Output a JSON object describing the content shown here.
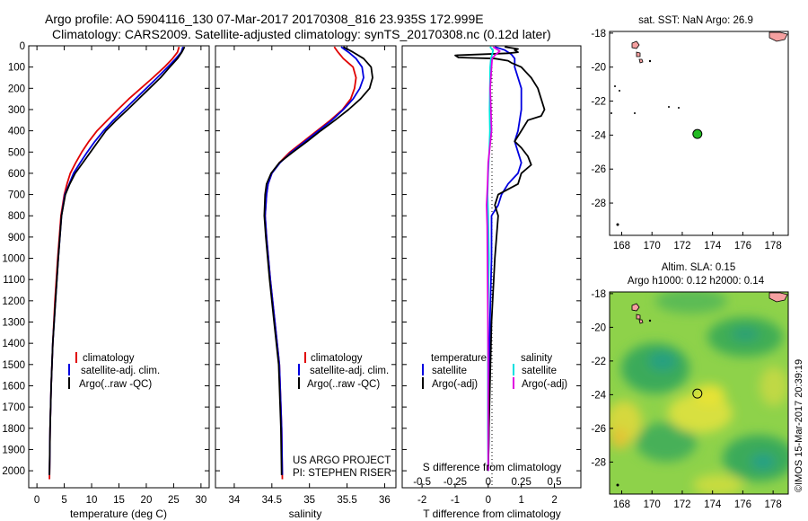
{
  "figure": {
    "title_line1": "Argo profile: AO 5904116_130 07-Mar-2017 20170308_816 23.935S 172.999E",
    "title_line2": "Climatology: CARS2009. Satellite-adjusted climatology: synTS_20170308.nc (0.12d later)",
    "timestamp": "©IMOS 15-Mar-2017 20:39:19",
    "project_line1": "US ARGO PROJECT",
    "project_line2": "PI: STEPHEN RISER"
  },
  "colors": {
    "climatology": "#e00000",
    "satellite": "#0000e0",
    "argo": "#000000",
    "sat_salinity": "#00e0e0",
    "argo_salinity": "#e000e0",
    "land": "#f5a0a0",
    "float_marker": "#22bb22"
  },
  "legend": {
    "climatology": "climatology",
    "satellite": "satellite-adj. clim.",
    "argo": "Argo(..raw -QC)",
    "diff_temp_header": "temperature",
    "diff_sal_header": "salinity",
    "diff_satellite": "satellite",
    "diff_argo": "Argo(-adj)"
  },
  "chart_data": [
    {
      "type": "line",
      "xlabel": "temperature (deg C)",
      "ylabel": "",
      "xlim": [
        -1.5,
        31.5
      ],
      "ylim": [
        2080,
        0
      ],
      "xticks": [
        0,
        5,
        10,
        15,
        20,
        25,
        30
      ],
      "yticks": [
        0,
        100,
        200,
        300,
        400,
        500,
        600,
        700,
        800,
        900,
        1000,
        1100,
        1200,
        1300,
        1400,
        1500,
        1600,
        1700,
        1800,
        1900,
        2000
      ],
      "series": [
        {
          "name": "climatology",
          "color": "#e00000",
          "x": [
            26.0,
            25.7,
            24.8,
            23.3,
            21.2,
            19.0,
            16.8,
            14.8,
            12.9,
            11.0,
            9.5,
            8.2,
            7.1,
            6.1,
            5.5,
            5.0,
            4.4,
            3.8,
            3.3,
            2.9,
            2.6,
            2.4,
            2.3
          ],
          "y": [
            5,
            30,
            60,
            100,
            150,
            200,
            250,
            300,
            350,
            400,
            450,
            500,
            550,
            600,
            650,
            700,
            800,
            1000,
            1200,
            1400,
            1600,
            1800,
            2040
          ]
        },
        {
          "name": "satellite-adj. clim.",
          "color": "#0000e0",
          "x": [
            26.7,
            26.4,
            25.4,
            23.9,
            22.0,
            20.0,
            18.0,
            16.0,
            14.0,
            12.2,
            10.6,
            9.2,
            7.9,
            6.7,
            5.9,
            5.1,
            4.5,
            3.9,
            3.4,
            2.9,
            2.6,
            2.4,
            2.3
          ],
          "y": [
            5,
            30,
            60,
            100,
            150,
            200,
            250,
            300,
            350,
            400,
            450,
            500,
            550,
            600,
            650,
            700,
            800,
            1000,
            1200,
            1400,
            1600,
            1800,
            2020
          ]
        },
        {
          "name": "Argo(..raw -QC)",
          "color": "#000000",
          "x": [
            27.0,
            26.5,
            25.7,
            24.3,
            22.6,
            20.6,
            18.6,
            16.6,
            14.5,
            12.6,
            11.2,
            9.8,
            8.4,
            7.0,
            6.0,
            5.2,
            4.5,
            3.9,
            3.4,
            2.9,
            2.6,
            2.4,
            2.3
          ],
          "y": [
            5,
            30,
            60,
            100,
            150,
            200,
            250,
            300,
            350,
            400,
            450,
            500,
            550,
            600,
            650,
            700,
            800,
            1000,
            1200,
            1400,
            1600,
            1800,
            2020
          ]
        }
      ]
    },
    {
      "type": "line",
      "xlabel": "salinity",
      "ylabel": "",
      "xlim": [
        33.75,
        36.15
      ],
      "ylim": [
        2080,
        0
      ],
      "xticks": [
        34,
        34.5,
        35,
        35.5,
        36
      ],
      "series": [
        {
          "name": "climatology",
          "color": "#e00000",
          "x": [
            35.33,
            35.38,
            35.45,
            35.58,
            35.62,
            35.6,
            35.55,
            35.44,
            35.28,
            35.1,
            34.92,
            34.74,
            34.6,
            34.5,
            34.45,
            34.43,
            34.41,
            34.43,
            34.48,
            34.54,
            34.6,
            34.63,
            34.64
          ],
          "y": [
            5,
            30,
            60,
            100,
            150,
            200,
            250,
            300,
            350,
            400,
            450,
            500,
            550,
            600,
            650,
            700,
            800,
            900,
            1100,
            1300,
            1500,
            1800,
            2040
          ]
        },
        {
          "name": "satellite-adj. clim.",
          "color": "#0000e0",
          "x": [
            35.42,
            35.52,
            35.62,
            35.7,
            35.72,
            35.67,
            35.58,
            35.45,
            35.3,
            35.12,
            34.94,
            34.76,
            34.61,
            34.5,
            34.45,
            34.43,
            34.41,
            34.43,
            34.48,
            34.54,
            34.6,
            34.63,
            34.64
          ],
          "y": [
            5,
            30,
            60,
            100,
            150,
            200,
            250,
            300,
            350,
            400,
            450,
            500,
            550,
            600,
            650,
            700,
            800,
            900,
            1100,
            1300,
            1500,
            1800,
            2020
          ]
        },
        {
          "name": "Argo(..raw -QC)",
          "color": "#000000",
          "x": [
            35.45,
            35.58,
            35.72,
            35.82,
            35.84,
            35.8,
            35.68,
            35.52,
            35.34,
            35.15,
            34.97,
            34.78,
            34.6,
            34.49,
            34.43,
            34.41,
            34.4,
            34.42,
            34.47,
            34.53,
            34.59,
            34.62,
            34.63
          ],
          "y": [
            5,
            30,
            60,
            100,
            150,
            200,
            250,
            300,
            350,
            400,
            450,
            500,
            550,
            600,
            650,
            700,
            800,
            900,
            1100,
            1300,
            1500,
            1800,
            2020
          ]
        }
      ]
    },
    {
      "type": "line",
      "xlabel": "T difference from climatology",
      "xlabel_top": "S difference from climatology",
      "ylabel": "",
      "xlim": [
        -2.6,
        2.8
      ],
      "ylim": [
        2080,
        0
      ],
      "xticks_T": [
        -2,
        -1,
        0,
        1,
        2
      ],
      "xticks_S": [
        -0.5,
        -0.25,
        0,
        0.25,
        0.5
      ],
      "series": [
        {
          "name": "temperature satellite",
          "color": "#0000e0",
          "x": [
            0.2,
            0.5,
            0.7,
            0.8,
            0.8,
            0.9,
            1.0,
            1.0,
            0.9,
            0.8,
            0.9,
            1.0,
            0.9,
            0.6,
            0.4,
            0.3,
            0.1,
            0.1,
            0.05,
            0.02,
            0.02,
            0.0
          ],
          "y": [
            5,
            20,
            40,
            60,
            100,
            150,
            200,
            300,
            400,
            450,
            500,
            550,
            600,
            650,
            700,
            750,
            800,
            1000,
            1300,
            1600,
            1800,
            2000
          ]
        },
        {
          "name": "temperature Argo(-adj)",
          "color": "#000000",
          "x": [
            0.5,
            0.9,
            0.8,
            0.9,
            0.6,
            -1.0,
            -0.9,
            0.2,
            0.6,
            0.7,
            1.0,
            1.3,
            1.5,
            1.7,
            1.6,
            1.2,
            1.0,
            0.8,
            1.0,
            1.2,
            1.3,
            1.0,
            0.9,
            0.3,
            0.2,
            0.3,
            0.2,
            0.1,
            0.05,
            0.02,
            0.0
          ],
          "y": [
            5,
            15,
            20,
            30,
            35,
            45,
            55,
            60,
            70,
            80,
            100,
            150,
            200,
            300,
            330,
            350,
            400,
            450,
            480,
            520,
            560,
            600,
            650,
            700,
            750,
            800,
            1000,
            1300,
            1600,
            1800,
            2000
          ]
        },
        {
          "name": "salinity satellite",
          "color": "#00e0e0",
          "x": [
            0.05,
            0.15,
            0.12,
            0.08,
            0.06,
            0.05,
            0.04,
            0.05,
            0.03,
            0.0,
            -0.02,
            0.0,
            0.02,
            0.0,
            -0.01,
            -0.01,
            0.0
          ],
          "y": [
            5,
            20,
            40,
            60,
            100,
            200,
            300,
            400,
            500,
            600,
            700,
            800,
            1000,
            1200,
            1500,
            1800,
            2000
          ]
        },
        {
          "name": "salinity Argo(-adj)",
          "color": "#e000e0",
          "x": [
            0.15,
            0.35,
            0.2,
            0.12,
            0.1,
            0.06,
            0.08,
            0.1,
            0.0,
            -0.02,
            -0.05,
            -0.03,
            -0.02,
            0.0,
            0.0
          ],
          "y": [
            5,
            25,
            45,
            60,
            100,
            200,
            300,
            400,
            550,
            650,
            750,
            850,
            1100,
            1500,
            2000
          ]
        }
      ]
    },
    {
      "type": "scatter",
      "title": "sat. SST: NaN Argo: 26.9",
      "xlim": [
        167.2,
        179.0
      ],
      "ylim": [
        -29.9,
        -17.9
      ],
      "xticks": [
        168,
        170,
        172,
        174,
        176,
        178
      ],
      "yticks": [
        -18,
        -20,
        -22,
        -24,
        -26,
        -28
      ],
      "float_lon": 172.999,
      "float_lat": -23.935
    },
    {
      "type": "heatmap",
      "title_line1": "Altim. SLA: 0.15",
      "title_line2": "Argo h1000: 0.12 h2000: 0.14",
      "xlim": [
        167.2,
        179.0
      ],
      "ylim": [
        -29.9,
        -17.9
      ],
      "xticks": [
        168,
        170,
        172,
        174,
        176,
        178
      ],
      "yticks": [
        -18,
        -20,
        -22,
        -24,
        -26,
        -28
      ],
      "float_lon": 172.999,
      "float_lat": -23.935
    }
  ]
}
